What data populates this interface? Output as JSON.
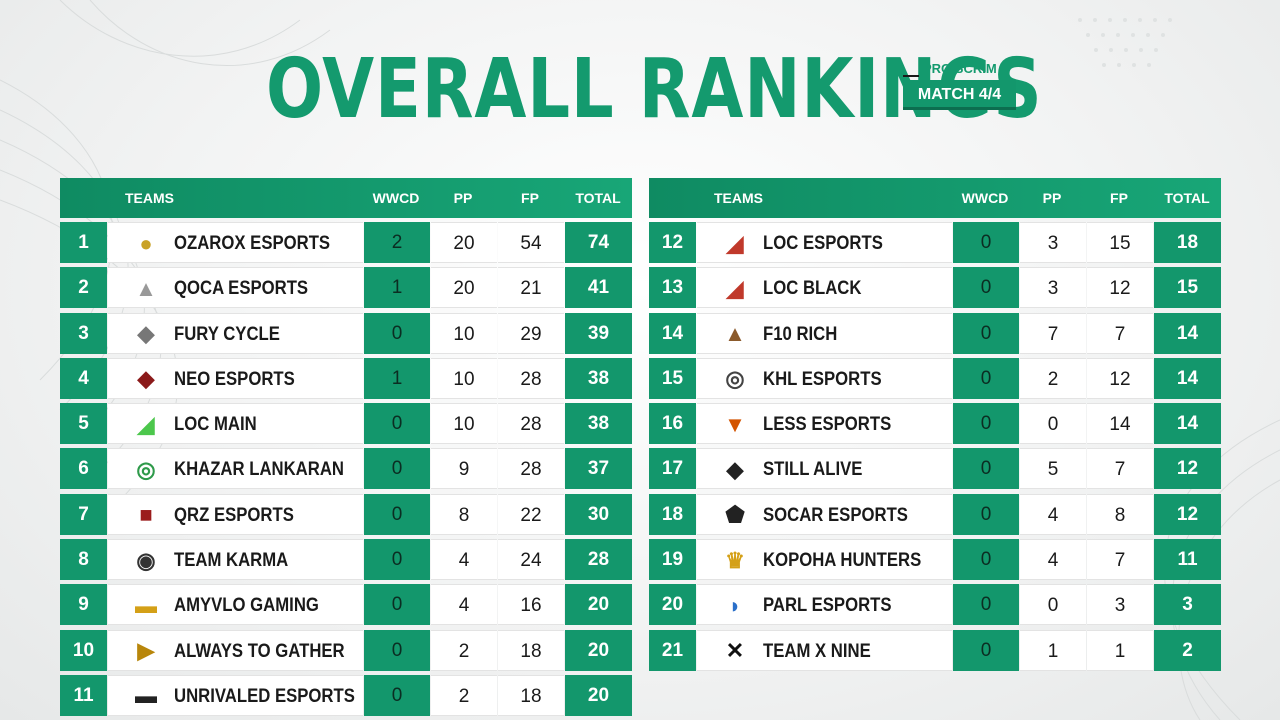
{
  "title": "OVERALL RANKINGS",
  "badge": {
    "top": "PRO SCRIM",
    "bottom": "MATCH 4/4"
  },
  "headers": {
    "teams": "TEAMS",
    "wwcd": "WWCD",
    "pp": "PP",
    "fp": "FP",
    "total": "TOTAL"
  },
  "colors": {
    "accent": "#13976c",
    "title": "#149a6e",
    "row_bg": "#ffffff"
  },
  "left_rows": [
    {
      "rank": "1",
      "team": "OZAROX ESPORTS",
      "wwcd": "2",
      "pp": "20",
      "fp": "54",
      "total": "74",
      "logo": "ozarox-logo-icon"
    },
    {
      "rank": "2",
      "team": "QOCA ESPORTS",
      "wwcd": "1",
      "pp": "20",
      "fp": "21",
      "total": "41",
      "logo": "qoca-logo-icon"
    },
    {
      "rank": "3",
      "team": "FURY CYCLE",
      "wwcd": "0",
      "pp": "10",
      "fp": "29",
      "total": "39",
      "logo": "fury-cycle-logo-icon"
    },
    {
      "rank": "4",
      "team": "NEO ESPORTS",
      "wwcd": "1",
      "pp": "10",
      "fp": "28",
      "total": "38",
      "logo": "neo-logo-icon"
    },
    {
      "rank": "5",
      "team": "LOC MAIN",
      "wwcd": "0",
      "pp": "10",
      "fp": "28",
      "total": "38",
      "logo": "loc-main-logo-icon"
    },
    {
      "rank": "6",
      "team": "KHAZAR LANKARAN",
      "wwcd": "0",
      "pp": "9",
      "fp": "28",
      "total": "37",
      "logo": "khazar-logo-icon"
    },
    {
      "rank": "7",
      "team": "QRZ ESPORTS",
      "wwcd": "0",
      "pp": "8",
      "fp": "22",
      "total": "30",
      "logo": "qrz-logo-icon"
    },
    {
      "rank": "8",
      "team": "TEAM KARMA",
      "wwcd": "0",
      "pp": "4",
      "fp": "24",
      "total": "28",
      "logo": "karma-logo-icon"
    },
    {
      "rank": "9",
      "team": "AMYVLO GAMING",
      "wwcd": "0",
      "pp": "4",
      "fp": "16",
      "total": "20",
      "logo": "amyvlo-logo-icon"
    },
    {
      "rank": "10",
      "team": "ALWAYS TO GATHER",
      "wwcd": "0",
      "pp": "2",
      "fp": "18",
      "total": "20",
      "logo": "always-to-gather-logo-icon"
    },
    {
      "rank": "11",
      "team": "UNRIVALED ESPORTS",
      "wwcd": "0",
      "pp": "2",
      "fp": "18",
      "total": "20",
      "logo": "unrivaled-logo-icon"
    }
  ],
  "right_rows": [
    {
      "rank": "12",
      "team": "LOC ESPORTS",
      "wwcd": "0",
      "pp": "3",
      "fp": "15",
      "total": "18",
      "logo": "loc-esports-logo-icon"
    },
    {
      "rank": "13",
      "team": "LOC BLACK",
      "wwcd": "0",
      "pp": "3",
      "fp": "12",
      "total": "15",
      "logo": "loc-black-logo-icon"
    },
    {
      "rank": "14",
      "team": "F10 RICH",
      "wwcd": "0",
      "pp": "7",
      "fp": "7",
      "total": "14",
      "logo": "f10-rich-logo-icon"
    },
    {
      "rank": "15",
      "team": "KHL ESPORTS",
      "wwcd": "0",
      "pp": "2",
      "fp": "12",
      "total": "14",
      "logo": "khl-logo-icon"
    },
    {
      "rank": "16",
      "team": "LESS ESPORTS",
      "wwcd": "0",
      "pp": "0",
      "fp": "14",
      "total": "14",
      "logo": "less-logo-icon"
    },
    {
      "rank": "17",
      "team": "STILL ALIVE",
      "wwcd": "0",
      "pp": "5",
      "fp": "7",
      "total": "12",
      "logo": "still-alive-logo-icon"
    },
    {
      "rank": "18",
      "team": "SOCAR ESPORTS",
      "wwcd": "0",
      "pp": "4",
      "fp": "8",
      "total": "12",
      "logo": "socar-logo-icon"
    },
    {
      "rank": "19",
      "team": "KOPOHA HUNTERS",
      "wwcd": "0",
      "pp": "4",
      "fp": "7",
      "total": "11",
      "logo": "kopoha-logo-icon"
    },
    {
      "rank": "20",
      "team": "PARL ESPORTS",
      "wwcd": "0",
      "pp": "0",
      "fp": "3",
      "total": "3",
      "logo": "parl-logo-icon"
    },
    {
      "rank": "21",
      "team": "TEAM X NINE",
      "wwcd": "0",
      "pp": "1",
      "fp": "1",
      "total": "2",
      "logo": "x-nine-logo-icon"
    }
  ]
}
